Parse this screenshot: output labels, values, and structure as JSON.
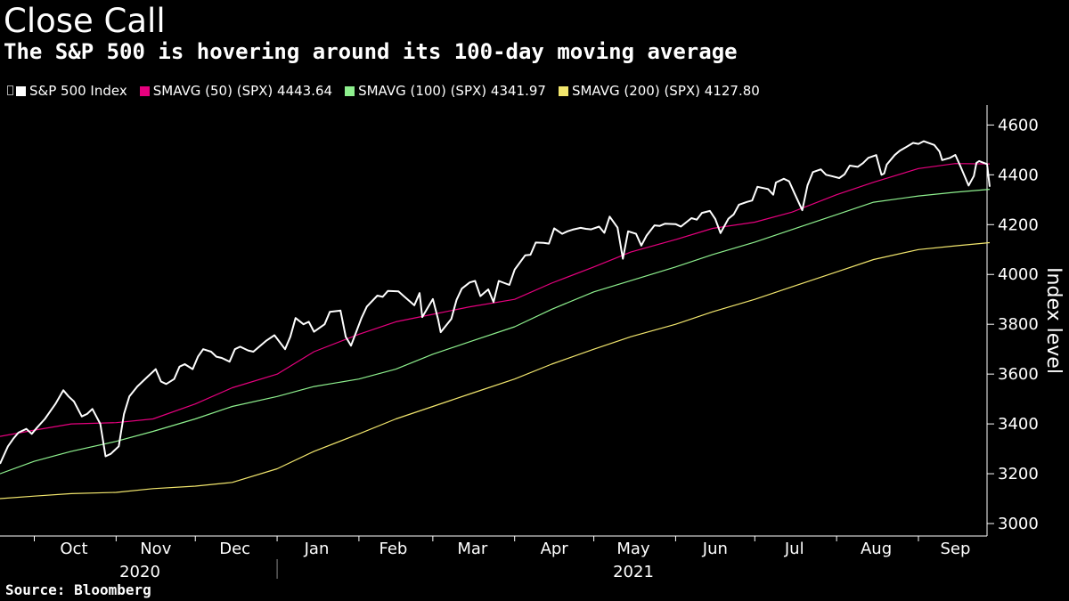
{
  "title": "Close Call",
  "subtitle": "The S&P 500 is hovering around its 100-day moving average",
  "source": "Source: Bloomberg",
  "legend": [
    {
      "label": "S&P 500 Index",
      "color": "#ffffff"
    },
    {
      "label": "SMAVG (50) (SPX) 4443.64",
      "color": "#e6007e"
    },
    {
      "label": "SMAVG (100) (SPX) 4341.97",
      "color": "#8ef08e"
    },
    {
      "label": "SMAVG (200) (SPX) 4127.80",
      "color": "#f2e66d"
    }
  ],
  "chart_data": {
    "type": "line",
    "title": "Close Call",
    "subtitle": "The S&P 500 is hovering around its 100-day moving average",
    "ylabel": "Index level",
    "ylim": [
      2950,
      4680
    ],
    "xlim": [
      "2020-09-18",
      "2021-09-27"
    ],
    "yticks": [
      3000,
      3200,
      3400,
      3600,
      3800,
      4000,
      4200,
      4400,
      4600
    ],
    "month_labels": [
      {
        "label": "Oct",
        "date": "2020-10-16"
      },
      {
        "label": "Nov",
        "date": "2020-11-16"
      },
      {
        "label": "Dec",
        "date": "2020-12-16"
      },
      {
        "label": "Jan",
        "date": "2021-01-16"
      },
      {
        "label": "Feb",
        "date": "2021-02-14"
      },
      {
        "label": "Mar",
        "date": "2021-03-16"
      },
      {
        "label": "Apr",
        "date": "2021-04-16"
      },
      {
        "label": "May",
        "date": "2021-05-16"
      },
      {
        "label": "Jun",
        "date": "2021-06-16"
      },
      {
        "label": "Jul",
        "date": "2021-07-16"
      },
      {
        "label": "Aug",
        "date": "2021-08-16"
      },
      {
        "label": "Sep",
        "date": "2021-09-15"
      }
    ],
    "month_ticks": [
      "2020-10-01",
      "2020-11-01",
      "2020-12-01",
      "2021-01-01",
      "2021-02-01",
      "2021-03-01",
      "2021-04-01",
      "2021-05-01",
      "2021-06-01",
      "2021-07-01",
      "2021-08-01",
      "2021-09-01"
    ],
    "year_labels": [
      {
        "label": "2020",
        "date": "2020-11-10"
      },
      {
        "label": "2021",
        "date": "2021-05-16"
      }
    ],
    "year_divider": "2021-01-01",
    "grid": false,
    "legend_position": "top-left",
    "series": [
      {
        "name": "S&P 500 Index",
        "color": "#ffffff",
        "points": [
          [
            "2020-09-18",
            3240
          ],
          [
            "2020-09-21",
            3310
          ],
          [
            "2020-09-23",
            3340
          ],
          [
            "2020-09-25",
            3365
          ],
          [
            "2020-09-28",
            3380
          ],
          [
            "2020-09-30",
            3360
          ],
          [
            "2020-10-02",
            3385
          ],
          [
            "2020-10-05",
            3420
          ],
          [
            "2020-10-07",
            3450
          ],
          [
            "2020-10-09",
            3480
          ],
          [
            "2020-10-12",
            3535
          ],
          [
            "2020-10-14",
            3510
          ],
          [
            "2020-10-16",
            3490
          ],
          [
            "2020-10-19",
            3430
          ],
          [
            "2020-10-21",
            3440
          ],
          [
            "2020-10-23",
            3460
          ],
          [
            "2020-10-26",
            3400
          ],
          [
            "2020-10-28",
            3270
          ],
          [
            "2020-10-30",
            3280
          ],
          [
            "2020-11-02",
            3310
          ],
          [
            "2020-11-04",
            3440
          ],
          [
            "2020-11-06",
            3510
          ],
          [
            "2020-11-09",
            3550
          ],
          [
            "2020-11-11",
            3570
          ],
          [
            "2020-11-13",
            3590
          ],
          [
            "2020-11-16",
            3620
          ],
          [
            "2020-11-18",
            3570
          ],
          [
            "2020-11-20",
            3560
          ],
          [
            "2020-11-23",
            3580
          ],
          [
            "2020-11-25",
            3630
          ],
          [
            "2020-11-27",
            3640
          ],
          [
            "2020-11-30",
            3620
          ],
          [
            "2020-12-02",
            3670
          ],
          [
            "2020-12-04",
            3700
          ],
          [
            "2020-12-07",
            3690
          ],
          [
            "2020-12-09",
            3670
          ],
          [
            "2020-12-11",
            3665
          ],
          [
            "2020-12-14",
            3650
          ],
          [
            "2020-12-16",
            3700
          ],
          [
            "2020-12-18",
            3710
          ],
          [
            "2020-12-21",
            3695
          ],
          [
            "2020-12-23",
            3690
          ],
          [
            "2020-12-28",
            3735
          ],
          [
            "2020-12-31",
            3756
          ],
          [
            "2021-01-04",
            3700
          ],
          [
            "2021-01-06",
            3750
          ],
          [
            "2021-01-08",
            3825
          ],
          [
            "2021-01-11",
            3800
          ],
          [
            "2021-01-13",
            3810
          ],
          [
            "2021-01-15",
            3770
          ],
          [
            "2021-01-19",
            3800
          ],
          [
            "2021-01-21",
            3850
          ],
          [
            "2021-01-25",
            3855
          ],
          [
            "2021-01-27",
            3750
          ],
          [
            "2021-01-29",
            3714
          ],
          [
            "2021-02-02",
            3826
          ],
          [
            "2021-02-04",
            3871
          ],
          [
            "2021-02-08",
            3915
          ],
          [
            "2021-02-10",
            3910
          ],
          [
            "2021-02-12",
            3934
          ],
          [
            "2021-02-16",
            3932
          ],
          [
            "2021-02-18",
            3913
          ],
          [
            "2021-02-22",
            3876
          ],
          [
            "2021-02-24",
            3925
          ],
          [
            "2021-02-25",
            3829
          ],
          [
            "2021-03-01",
            3901
          ],
          [
            "2021-03-03",
            3820
          ],
          [
            "2021-03-04",
            3768
          ],
          [
            "2021-03-08",
            3821
          ],
          [
            "2021-03-10",
            3898
          ],
          [
            "2021-03-12",
            3943
          ],
          [
            "2021-03-15",
            3968
          ],
          [
            "2021-03-17",
            3974
          ],
          [
            "2021-03-19",
            3913
          ],
          [
            "2021-03-22",
            3940
          ],
          [
            "2021-03-24",
            3889
          ],
          [
            "2021-03-26",
            3974
          ],
          [
            "2021-03-30",
            3958
          ],
          [
            "2021-04-01",
            4019
          ],
          [
            "2021-04-05",
            4077
          ],
          [
            "2021-04-07",
            4079
          ],
          [
            "2021-04-09",
            4128
          ],
          [
            "2021-04-12",
            4127
          ],
          [
            "2021-04-14",
            4124
          ],
          [
            "2021-04-16",
            4185
          ],
          [
            "2021-04-19",
            4163
          ],
          [
            "2021-04-21",
            4173
          ],
          [
            "2021-04-23",
            4180
          ],
          [
            "2021-04-26",
            4187
          ],
          [
            "2021-04-28",
            4183
          ],
          [
            "2021-04-30",
            4181
          ],
          [
            "2021-05-03",
            4192
          ],
          [
            "2021-05-05",
            4167
          ],
          [
            "2021-05-07",
            4232
          ],
          [
            "2021-05-10",
            4188
          ],
          [
            "2021-05-12",
            4063
          ],
          [
            "2021-05-14",
            4173
          ],
          [
            "2021-05-17",
            4163
          ],
          [
            "2021-05-19",
            4116
          ],
          [
            "2021-05-21",
            4156
          ],
          [
            "2021-05-24",
            4197
          ],
          [
            "2021-05-26",
            4195
          ],
          [
            "2021-05-28",
            4204
          ],
          [
            "2021-06-01",
            4202
          ],
          [
            "2021-06-03",
            4192
          ],
          [
            "2021-06-07",
            4226
          ],
          [
            "2021-06-09",
            4220
          ],
          [
            "2021-06-11",
            4247
          ],
          [
            "2021-06-14",
            4255
          ],
          [
            "2021-06-16",
            4223
          ],
          [
            "2021-06-18",
            4166
          ],
          [
            "2021-06-21",
            4224
          ],
          [
            "2021-06-23",
            4241
          ],
          [
            "2021-06-25",
            4280
          ],
          [
            "2021-06-28",
            4291
          ],
          [
            "2021-06-30",
            4297
          ],
          [
            "2021-07-02",
            4352
          ],
          [
            "2021-07-06",
            4343
          ],
          [
            "2021-07-08",
            4320
          ],
          [
            "2021-07-09",
            4369
          ],
          [
            "2021-07-12",
            4384
          ],
          [
            "2021-07-14",
            4374
          ],
          [
            "2021-07-16",
            4327
          ],
          [
            "2021-07-19",
            4258
          ],
          [
            "2021-07-21",
            4358
          ],
          [
            "2021-07-23",
            4411
          ],
          [
            "2021-07-26",
            4422
          ],
          [
            "2021-07-28",
            4400
          ],
          [
            "2021-07-30",
            4395
          ],
          [
            "2021-08-02",
            4387
          ],
          [
            "2021-08-04",
            4402
          ],
          [
            "2021-08-06",
            4437
          ],
          [
            "2021-08-09",
            4432
          ],
          [
            "2021-08-11",
            4447
          ],
          [
            "2021-08-13",
            4468
          ],
          [
            "2021-08-16",
            4479
          ],
          [
            "2021-08-18",
            4400
          ],
          [
            "2021-08-19",
            4405
          ],
          [
            "2021-08-20",
            4441
          ],
          [
            "2021-08-23",
            4479
          ],
          [
            "2021-08-25",
            4497
          ],
          [
            "2021-08-27",
            4509
          ],
          [
            "2021-08-30",
            4528
          ],
          [
            "2021-09-01",
            4524
          ],
          [
            "2021-09-03",
            4535
          ],
          [
            "2021-09-07",
            4520
          ],
          [
            "2021-09-09",
            4493
          ],
          [
            "2021-09-10",
            4459
          ],
          [
            "2021-09-13",
            4468
          ],
          [
            "2021-09-15",
            4480
          ],
          [
            "2021-09-17",
            4432
          ],
          [
            "2021-09-20",
            4357
          ],
          [
            "2021-09-22",
            4395
          ],
          [
            "2021-09-23",
            4448
          ],
          [
            "2021-09-24",
            4455
          ],
          [
            "2021-09-27",
            4443
          ],
          [
            "2021-09-28",
            4352
          ]
        ]
      },
      {
        "name": "SMAVG (50) (SPX) 4443.64",
        "color": "#e6007e",
        "points": [
          [
            "2020-09-18",
            3350
          ],
          [
            "2020-10-01",
            3375
          ],
          [
            "2020-10-15",
            3400
          ],
          [
            "2020-11-01",
            3405
          ],
          [
            "2020-11-15",
            3420
          ],
          [
            "2020-12-01",
            3480
          ],
          [
            "2020-12-15",
            3545
          ],
          [
            "2021-01-01",
            3600
          ],
          [
            "2021-01-15",
            3690
          ],
          [
            "2021-02-01",
            3760
          ],
          [
            "2021-02-15",
            3810
          ],
          [
            "2021-03-01",
            3840
          ],
          [
            "2021-03-15",
            3870
          ],
          [
            "2021-04-01",
            3900
          ],
          [
            "2021-04-15",
            3965
          ],
          [
            "2021-05-01",
            4030
          ],
          [
            "2021-05-15",
            4090
          ],
          [
            "2021-06-01",
            4140
          ],
          [
            "2021-06-15",
            4185
          ],
          [
            "2021-07-01",
            4210
          ],
          [
            "2021-07-15",
            4250
          ],
          [
            "2021-08-01",
            4320
          ],
          [
            "2021-08-15",
            4370
          ],
          [
            "2021-09-01",
            4425
          ],
          [
            "2021-09-15",
            4445
          ],
          [
            "2021-09-28",
            4443.64
          ]
        ]
      },
      {
        "name": "SMAVG (100) (SPX) 4341.97",
        "color": "#8ef08e",
        "points": [
          [
            "2020-09-18",
            3200
          ],
          [
            "2020-10-01",
            3250
          ],
          [
            "2020-10-15",
            3290
          ],
          [
            "2020-11-01",
            3330
          ],
          [
            "2020-11-15",
            3370
          ],
          [
            "2020-12-01",
            3420
          ],
          [
            "2020-12-15",
            3470
          ],
          [
            "2021-01-01",
            3510
          ],
          [
            "2021-01-15",
            3550
          ],
          [
            "2021-02-01",
            3580
          ],
          [
            "2021-02-15",
            3620
          ],
          [
            "2021-03-01",
            3680
          ],
          [
            "2021-03-15",
            3730
          ],
          [
            "2021-04-01",
            3790
          ],
          [
            "2021-04-15",
            3860
          ],
          [
            "2021-05-01",
            3930
          ],
          [
            "2021-05-15",
            3975
          ],
          [
            "2021-06-01",
            4030
          ],
          [
            "2021-06-15",
            4080
          ],
          [
            "2021-07-01",
            4130
          ],
          [
            "2021-07-15",
            4180
          ],
          [
            "2021-08-01",
            4240
          ],
          [
            "2021-08-15",
            4290
          ],
          [
            "2021-09-01",
            4315
          ],
          [
            "2021-09-15",
            4330
          ],
          [
            "2021-09-28",
            4341.97
          ]
        ]
      },
      {
        "name": "SMAVG (200) (SPX) 4127.80",
        "color": "#f2e66d",
        "points": [
          [
            "2020-09-18",
            3100
          ],
          [
            "2020-10-01",
            3110
          ],
          [
            "2020-10-15",
            3120
          ],
          [
            "2020-11-01",
            3125
          ],
          [
            "2020-11-15",
            3140
          ],
          [
            "2020-12-01",
            3150
          ],
          [
            "2020-12-15",
            3165
          ],
          [
            "2021-01-01",
            3220
          ],
          [
            "2021-01-15",
            3290
          ],
          [
            "2021-02-01",
            3360
          ],
          [
            "2021-02-15",
            3420
          ],
          [
            "2021-03-01",
            3470
          ],
          [
            "2021-03-15",
            3520
          ],
          [
            "2021-04-01",
            3580
          ],
          [
            "2021-04-15",
            3640
          ],
          [
            "2021-05-01",
            3700
          ],
          [
            "2021-05-15",
            3750
          ],
          [
            "2021-06-01",
            3800
          ],
          [
            "2021-06-15",
            3850
          ],
          [
            "2021-07-01",
            3900
          ],
          [
            "2021-07-15",
            3950
          ],
          [
            "2021-08-01",
            4010
          ],
          [
            "2021-08-15",
            4060
          ],
          [
            "2021-09-01",
            4100
          ],
          [
            "2021-09-15",
            4115
          ],
          [
            "2021-09-28",
            4127.8
          ]
        ]
      }
    ]
  }
}
